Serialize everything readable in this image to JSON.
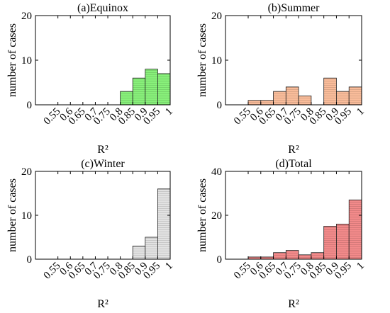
{
  "chart_data": [
    {
      "type": "histogram",
      "title": "(a)Equinox",
      "xlabel": "R²",
      "ylabel": "number of cases",
      "bins": [
        0.55,
        0.6,
        0.65,
        0.7,
        0.75,
        0.8,
        0.85,
        0.9,
        0.95,
        1
      ],
      "counts": [
        0,
        0,
        0,
        0,
        0,
        3,
        6,
        8,
        7
      ],
      "color": "#88f07a",
      "xlim": [
        0.46,
        1
      ],
      "ylim": [
        0,
        20
      ],
      "xticks": [
        0.55,
        0.6,
        0.65,
        0.7,
        0.75,
        0.8,
        0.85,
        0.9,
        0.95,
        1
      ],
      "yticks": [
        0,
        10,
        20
      ]
    },
    {
      "type": "histogram",
      "title": "(b)Summer",
      "xlabel": "R²",
      "ylabel": "number of cases",
      "bins": [
        0.55,
        0.6,
        0.65,
        0.7,
        0.75,
        0.8,
        0.85,
        0.9,
        0.95,
        1
      ],
      "counts": [
        1,
        1,
        3,
        4,
        2,
        0,
        6,
        3,
        4
      ],
      "color": "#f9bc9a",
      "xlim": [
        0.46,
        1
      ],
      "ylim": [
        0,
        20
      ],
      "xticks": [
        0.55,
        0.6,
        0.65,
        0.7,
        0.75,
        0.8,
        0.85,
        0.9,
        0.95,
        1
      ],
      "yticks": [
        0,
        10,
        20
      ]
    },
    {
      "type": "histogram",
      "title": "(c)Winter",
      "xlabel": "R²",
      "ylabel": "number of cases",
      "bins": [
        0.55,
        0.6,
        0.65,
        0.7,
        0.75,
        0.8,
        0.85,
        0.9,
        0.95,
        1
      ],
      "counts": [
        0,
        0,
        0,
        0,
        0,
        0,
        3,
        5,
        16
      ],
      "color": "#e2e2e2",
      "xlim": [
        0.46,
        1
      ],
      "ylim": [
        0,
        20
      ],
      "xticks": [
        0.55,
        0.6,
        0.65,
        0.7,
        0.75,
        0.8,
        0.85,
        0.9,
        0.95,
        1
      ],
      "yticks": [
        0,
        10,
        20
      ]
    },
    {
      "type": "histogram",
      "title": "(d)Total",
      "xlabel": "R²",
      "ylabel": "number of cases",
      "bins": [
        0.55,
        0.6,
        0.65,
        0.7,
        0.75,
        0.8,
        0.85,
        0.9,
        0.95,
        1
      ],
      "counts": [
        1,
        1,
        3,
        4,
        2,
        3,
        15,
        16,
        27
      ],
      "color": "#f28a8a",
      "xlim": [
        0.46,
        1
      ],
      "ylim": [
        0,
        40
      ],
      "xticks": [
        0.55,
        0.6,
        0.65,
        0.7,
        0.75,
        0.8,
        0.85,
        0.9,
        0.95,
        1
      ],
      "yticks": [
        0,
        20,
        40
      ]
    }
  ]
}
